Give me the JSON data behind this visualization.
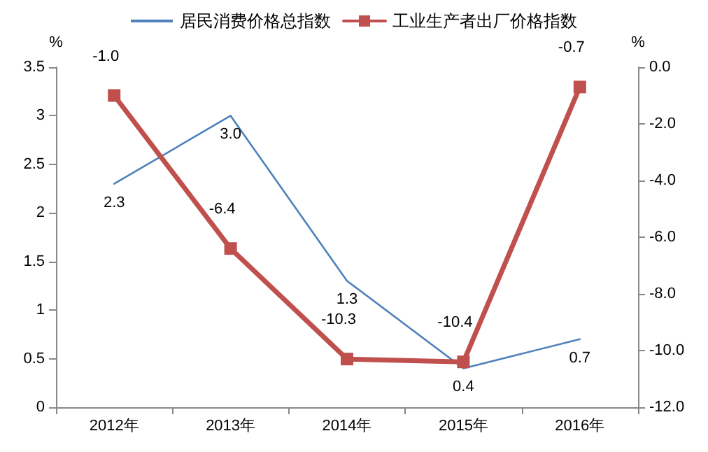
{
  "chart_data": {
    "type": "line",
    "categories": [
      "2012年",
      "2013年",
      "2014年",
      "2015年",
      "2016年"
    ],
    "ylabel": "%",
    "y2label": "%",
    "ylim": [
      0,
      3.5
    ],
    "yticks": [
      0,
      0.5,
      1,
      1.5,
      2,
      2.5,
      3,
      3.5
    ],
    "y2lim": [
      -12,
      0
    ],
    "y2ticks": [
      {
        "value": -12,
        "label": "-12.0"
      },
      {
        "value": -10,
        "label": "-10.0"
      },
      {
        "value": -8,
        "label": "-8.0"
      },
      {
        "value": -6,
        "label": "-6.0"
      },
      {
        "value": -4,
        "label": "-4.0"
      },
      {
        "value": -2,
        "label": "-2.0"
      },
      {
        "value": 0,
        "label": "0.0"
      }
    ],
    "series": [
      {
        "name": "居民消费价格总指数",
        "color": "#4f81bd",
        "values": [
          2.3,
          3.0,
          1.3,
          0.4,
          0.7
        ],
        "value_labels": [
          "2.3",
          "3.0",
          "1.3",
          "0.4",
          "0.7"
        ],
        "marker": "none"
      },
      {
        "name": "工业生产者出厂价格指数",
        "color": "#c0504d",
        "axis": "y2",
        "values": [
          -1.0,
          -6.4,
          -10.3,
          -10.4,
          -0.7
        ],
        "value_labels": [
          "-1.0",
          "-6.4",
          "-10.3",
          "-10.4",
          "-0.7"
        ],
        "marker": "square"
      }
    ],
    "legend": "top",
    "grid": false
  }
}
